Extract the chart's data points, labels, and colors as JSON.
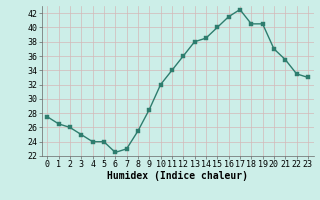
{
  "x": [
    0,
    1,
    2,
    3,
    4,
    5,
    6,
    7,
    8,
    9,
    10,
    11,
    12,
    13,
    14,
    15,
    16,
    17,
    18,
    19,
    20,
    21,
    22,
    23
  ],
  "y": [
    27.5,
    26.5,
    26,
    25,
    24,
    24,
    22.5,
    23,
    25.5,
    28.5,
    32,
    34,
    36,
    38,
    38.5,
    40,
    41.5,
    42.5,
    40.5,
    40.5,
    37,
    35.5,
    33.5,
    33
  ],
  "line_color": "#2e7d6e",
  "marker_color": "#2e7d6e",
  "bg_color": "#cceee8",
  "grid_color": "#d4b8b8",
  "xlabel": "Humidex (Indice chaleur)",
  "ylim": [
    22,
    43
  ],
  "yticks": [
    22,
    24,
    26,
    28,
    30,
    32,
    34,
    36,
    38,
    40,
    42
  ],
  "xticks": [
    0,
    1,
    2,
    3,
    4,
    5,
    6,
    7,
    8,
    9,
    10,
    11,
    12,
    13,
    14,
    15,
    16,
    17,
    18,
    19,
    20,
    21,
    22,
    23
  ],
  "xlabel_fontsize": 7,
  "tick_fontsize": 6,
  "line_width": 1.0,
  "marker_size": 2.5
}
